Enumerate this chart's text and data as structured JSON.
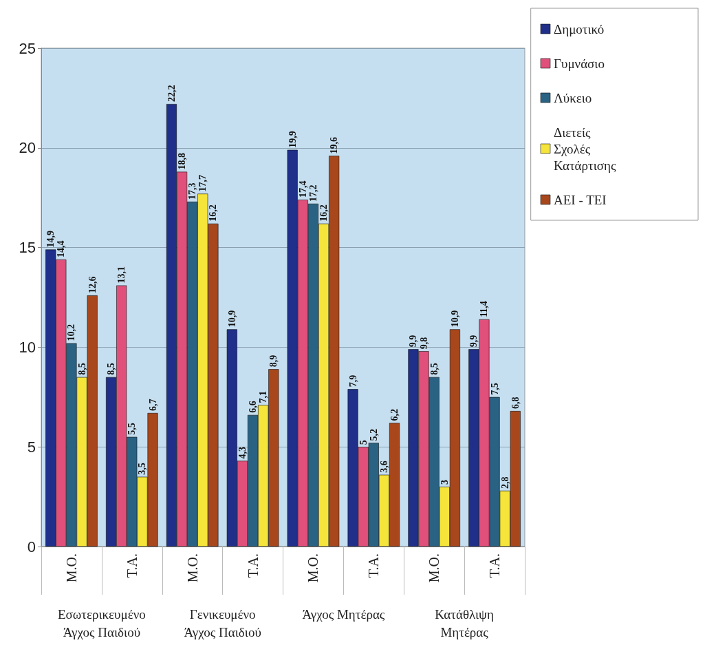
{
  "chart_data": {
    "type": "bar",
    "categories": [
      "Μ.Ο.",
      "Τ.Α.",
      "Μ.Ο.",
      "Τ.Α.",
      "Μ.Ο.",
      "Τ.Α.",
      "Μ.Ο.",
      "Τ.Α."
    ],
    "series": [
      {
        "name": "Δημοτικό",
        "color": "#1f2f8a",
        "values": [
          14.9,
          8.5,
          22.2,
          10.9,
          19.9,
          7.9,
          9.9,
          9.9
        ],
        "value_labels": [
          "14,9",
          "8,5",
          "22,2",
          "10,9",
          "19,9",
          "7,9",
          "9,9",
          "9,9"
        ]
      },
      {
        "name": "Γυμνάσιο",
        "color": "#e0507a",
        "values": [
          14.4,
          13.1,
          18.8,
          4.3,
          17.4,
          5,
          9.8,
          11.4
        ],
        "value_labels": [
          "14,4",
          "13,1",
          "18,8",
          "4,3",
          "17,4",
          "5",
          "9,8",
          "11,4"
        ]
      },
      {
        "name": "Λύκειο",
        "color": "#2a6283",
        "values": [
          10.2,
          5.5,
          17.3,
          6.6,
          17.2,
          5.2,
          8.5,
          7.5
        ],
        "value_labels": [
          "10,2",
          "5,5",
          "17,3",
          "6,6",
          "17,2",
          "5,2",
          "8,5",
          "7,5"
        ]
      },
      {
        "name": "Διετείς Σχολές Κατάρτισης",
        "color": "#f5e43a",
        "values": [
          8.5,
          3.5,
          17.7,
          7.1,
          16.2,
          3.6,
          3,
          2.8
        ],
        "value_labels": [
          "8,5",
          "3,5",
          "17,7",
          "7,1",
          "16,2",
          "3,6",
          "3",
          "2,8"
        ]
      },
      {
        "name": "ΑΕΙ - ΤΕΙ",
        "color": "#a8471c",
        "values": [
          12.6,
          6.7,
          16.2,
          8.9,
          19.6,
          6.2,
          10.9,
          6.8
        ],
        "value_labels": [
          "12,6",
          "6,7",
          "16,2",
          "8,9",
          "19,6",
          "6,2",
          "10,9",
          "6,8"
        ]
      }
    ],
    "ylim": [
      0,
      25
    ],
    "yticks": [
      0,
      5,
      10,
      15,
      20,
      25
    ],
    "grid": "y",
    "legend": "top right",
    "annotations": [
      "Εσωτερικευμένο Άγχος Παιδιού",
      "Γενικευμένο Άγχος Παιδιού",
      "Άγχος Μητέρας",
      "Κατάθλιψη Μητέρας"
    ]
  }
}
